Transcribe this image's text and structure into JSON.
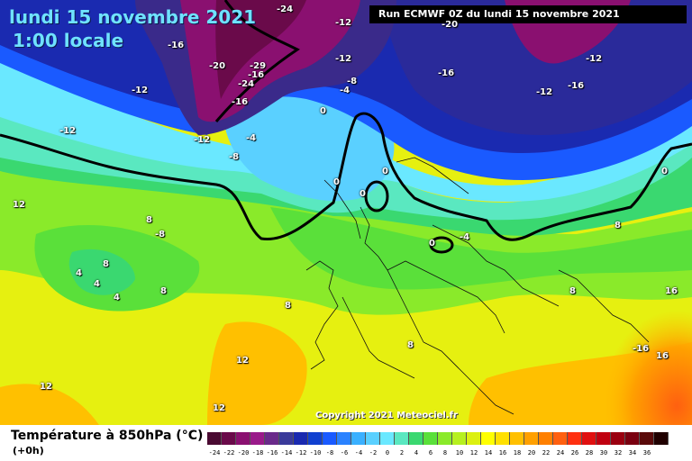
{
  "header": {
    "date": "lundi 15 novembre 2021",
    "time": "1:00 locale",
    "run": "Run ECMWF 0Z du lundi 15 novembre 2021"
  },
  "copyright": "Copyright 2021 Meteociel.fr",
  "legend": {
    "parameter": "Température à 850hPa (°C)",
    "lead_time": "(+0h)",
    "colors": [
      "#4a0a32",
      "#6a0a4a",
      "#8a1070",
      "#9a1a8a",
      "#6a2a8a",
      "#3a3a9a",
      "#1a2ab0",
      "#1040d0",
      "#1a5aff",
      "#2a82ff",
      "#3ab0ff",
      "#5ad0ff",
      "#6ae8ff",
      "#5ae8c0",
      "#3ad870",
      "#5ae03a",
      "#8aea2a",
      "#b6f020",
      "#dcf010",
      "#ffff00",
      "#ffe000",
      "#ffc000",
      "#ffa000",
      "#ff8000",
      "#ff6010",
      "#ff3010",
      "#e01010",
      "#c00010",
      "#9a0010",
      "#7a0010",
      "#5a0a0a",
      "#200000"
    ],
    "labels": [
      "-24",
      "-22",
      "-20",
      "-18",
      "-16",
      "-14",
      "-12",
      "-10",
      "-8",
      "-6",
      "-4",
      "-2",
      "0",
      "2",
      "4",
      "6",
      "8",
      "10",
      "12",
      "14",
      "16",
      "18",
      "20",
      "22",
      "24",
      "26",
      "28",
      "30",
      "32",
      "34",
      "36"
    ]
  },
  "isotherm_labels": [
    "-24",
    "-12",
    "-16",
    "-20",
    "-29",
    "-16",
    "-24",
    "-16",
    "-12",
    "-12",
    "-12",
    "-12",
    "-16",
    "-12",
    "-16",
    "-20",
    "-8",
    "-4",
    "0",
    "-4",
    "-12",
    "-8",
    "0",
    "0",
    "0",
    "0",
    "-4",
    "0",
    "12",
    "8",
    "-8",
    "4",
    "8",
    "4",
    "4",
    "8",
    "8",
    "12",
    "12",
    "12",
    "8",
    "8",
    "8",
    "16",
    "-16",
    "16"
  ]
}
